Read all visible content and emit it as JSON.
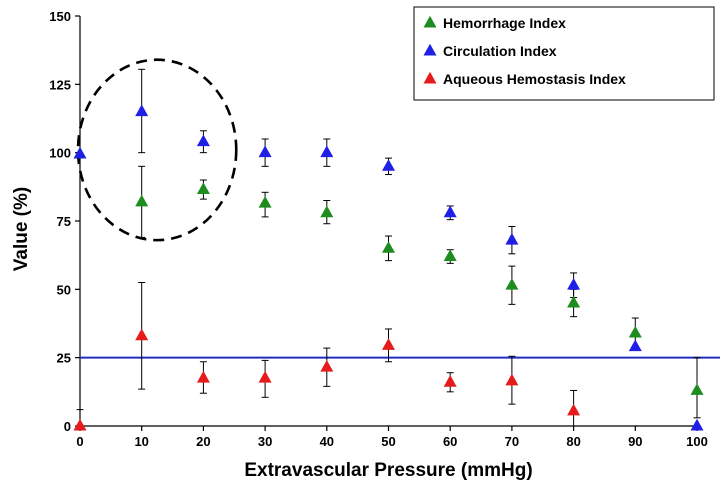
{
  "chart_data": {
    "type": "scatter",
    "title": "",
    "xlabel": "Extravascular Pressure (mmHg)",
    "ylabel": "Value (%)",
    "xlim": [
      0,
      100
    ],
    "ylim": [
      0,
      150
    ],
    "x_ticks": [
      "0",
      "10",
      "20",
      "30",
      "40",
      "50",
      "60",
      "70",
      "80",
      "90",
      "100"
    ],
    "y_ticks": [
      "0",
      "25",
      "50",
      "75",
      "100",
      "125",
      "150"
    ],
    "grid": false,
    "legend_position": "top-right",
    "reference_line": {
      "y": 25,
      "color": "#1f2fbf"
    },
    "highlight_ellipse": {
      "x_range": [
        0,
        25
      ],
      "y_range": [
        68,
        134
      ],
      "style": "dashed"
    },
    "series": [
      {
        "name": "Hemorrhage Index",
        "color": "#1e8c1e",
        "marker": "triangle-up",
        "x": [
          10,
          20,
          30,
          40,
          50,
          60,
          70,
          80,
          90,
          100
        ],
        "y": [
          82,
          86.5,
          81.5,
          78,
          65,
          62,
          51.5,
          45,
          34,
          13
        ],
        "err_up": [
          13,
          3.5,
          4,
          4.5,
          4.5,
          2.5,
          7,
          5,
          5.5,
          12
        ],
        "err_down": [
          13,
          3.5,
          5,
          4,
          4.5,
          2.5,
          7,
          5,
          5.5,
          10
        ]
      },
      {
        "name": "Circulation Index",
        "color": "#1f1fe6",
        "marker": "triangle-up",
        "x": [
          0,
          10,
          20,
          30,
          40,
          50,
          60,
          70,
          80,
          90,
          100
        ],
        "y": [
          99.5,
          115,
          104,
          100,
          100,
          95,
          78,
          68,
          51.5,
          29,
          0
        ],
        "err_up": [
          0,
          15.5,
          4,
          5,
          5,
          3,
          2.5,
          5,
          4.5,
          0,
          0
        ],
        "err_down": [
          0,
          15,
          4,
          5,
          5,
          3,
          2.5,
          5,
          4.5,
          0,
          0
        ]
      },
      {
        "name": "Aqueous Hemostasis Index",
        "color": "#e61c1c",
        "marker": "triangle-up",
        "x": [
          0,
          10,
          20,
          30,
          40,
          50,
          60,
          70,
          80
        ],
        "y": [
          0,
          33,
          17.5,
          17.5,
          21.5,
          29.5,
          16,
          16.5,
          5.5
        ],
        "err_up": [
          6,
          19.5,
          6,
          6.5,
          7,
          6,
          3.5,
          9,
          7.5
        ],
        "err_down": [
          0,
          19.5,
          5.5,
          7,
          7,
          6,
          3.5,
          8.5,
          5.5
        ]
      }
    ]
  }
}
